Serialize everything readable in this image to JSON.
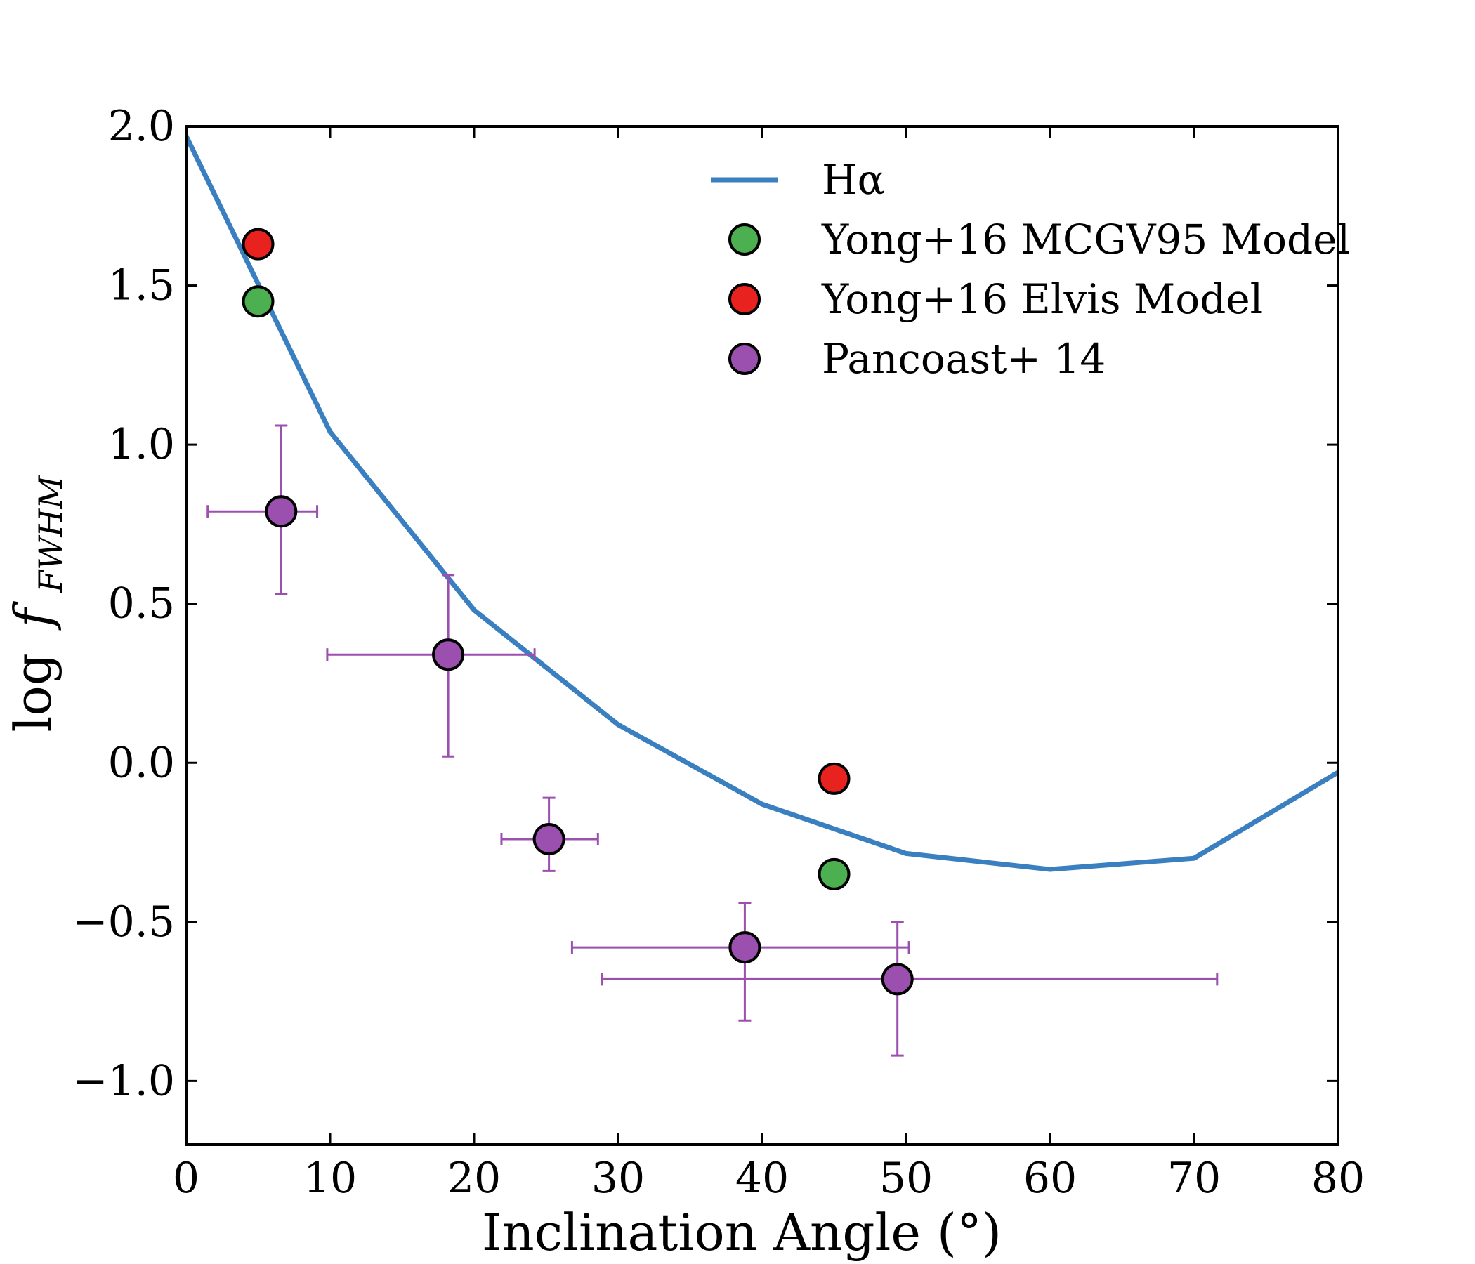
{
  "chart_data": {
    "type": "scatter",
    "title": "",
    "xlabel": "Inclination Angle (°)",
    "ylabel": "log f_FWHM",
    "ylabel_parts": {
      "prefix": "log",
      "symbol": "f",
      "subscript": "FWHM"
    },
    "xlim": [
      0,
      80
    ],
    "ylim": [
      -1.2,
      2.0
    ],
    "xticks": [
      0,
      10,
      20,
      30,
      40,
      50,
      60,
      70,
      80
    ],
    "yticks": [
      2.0,
      1.5,
      1.0,
      0.5,
      0.0,
      -0.5,
      -1.0
    ],
    "xtick_labels": [
      "0",
      "10",
      "20",
      "30",
      "40",
      "50",
      "60",
      "70",
      "80"
    ],
    "ytick_labels": [
      "2.0",
      "1.5",
      "1.0",
      "0.5",
      "0.0",
      "−0.5",
      "−1.0"
    ],
    "grid": false,
    "legend_position": "top-right",
    "series": [
      {
        "name": "Hα",
        "kind": "line",
        "color": "#3a7fbf",
        "x": [
          0,
          10,
          20,
          30,
          40,
          50,
          60,
          70,
          80
        ],
        "y": [
          1.97,
          1.04,
          0.48,
          0.12,
          -0.13,
          -0.285,
          -0.335,
          -0.3,
          -0.03
        ]
      },
      {
        "name": "Yong+16 MCGV95 Model",
        "kind": "scatter",
        "color": "#4caf50",
        "x": [
          5,
          45
        ],
        "y": [
          1.45,
          -0.35
        ]
      },
      {
        "name": "Yong+16 Elvis Model",
        "kind": "scatter",
        "color": "#e8221f",
        "x": [
          5,
          45
        ],
        "y": [
          1.63,
          -0.05
        ]
      },
      {
        "name": "Pancoast+ 14",
        "kind": "errorbar",
        "color": "#9b4fae",
        "points": [
          {
            "x": 6.6,
            "y": 0.79,
            "xlo": 1.5,
            "xhi": 9.1,
            "ylo": 0.53,
            "yhi": 1.06
          },
          {
            "x": 18.2,
            "y": 0.34,
            "xlo": 9.8,
            "xhi": 24.2,
            "ylo": 0.02,
            "yhi": 0.59
          },
          {
            "x": 25.2,
            "y": -0.24,
            "xlo": 21.9,
            "xhi": 28.6,
            "ylo": -0.34,
            "yhi": -0.11
          },
          {
            "x": 38.8,
            "y": -0.58,
            "xlo": 26.8,
            "xhi": 50.2,
            "ylo": -0.81,
            "yhi": -0.44
          },
          {
            "x": 49.4,
            "y": -0.68,
            "xlo": 28.9,
            "xhi": 71.6,
            "ylo": -0.92,
            "yhi": -0.5
          }
        ]
      }
    ]
  }
}
